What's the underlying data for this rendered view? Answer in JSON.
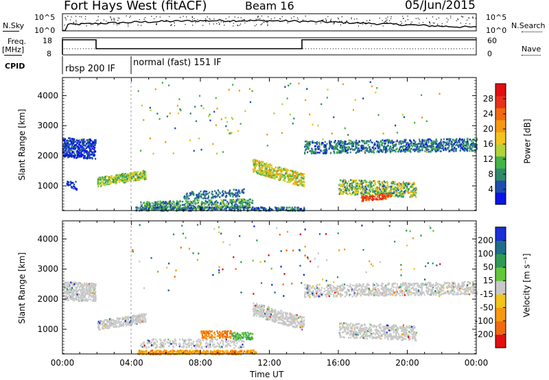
{
  "header": {
    "title": "Fort Hays West (fitACF)",
    "beam": "Beam 16",
    "date": "05/Jun/2015"
  },
  "nsky_panel": {
    "left_label": "N.Sky",
    "right_label": "N.Search",
    "left_ticks": [
      "10^5",
      "10^0"
    ],
    "right_ticks": [
      "10^5",
      "10^0"
    ]
  },
  "freq_panel": {
    "left_label_top": "Freq.",
    "left_label_unit": "[MHz]",
    "right_label": "Nave",
    "left_ticks": [
      "18",
      "8"
    ],
    "right_ticks": [
      "60",
      "0"
    ]
  },
  "cpid": {
    "label": "CPID",
    "segments": [
      "rbsp 200 IF",
      "normal (fast) 151 IF"
    ]
  },
  "chart_data": [
    {
      "type": "heatmap",
      "name": "power",
      "ylabel": "Slant Range [km]",
      "xlim": [
        0,
        24
      ],
      "ylim": [
        180,
        4600
      ],
      "yticks": [
        1000,
        2000,
        3000,
        4000
      ],
      "colorbar": {
        "label": "Power [dB]",
        "ticks": [
          "4",
          "8",
          "12",
          "16",
          "20",
          "24",
          "28"
        ],
        "colors": [
          "#0a14e6",
          "#1e4fb0",
          "#2f8a6a",
          "#44b447",
          "#b6d23a",
          "#f2c41c",
          "#f59a10",
          "#f06a10",
          "#e8301a",
          "#e01010"
        ]
      }
    },
    {
      "type": "heatmap",
      "name": "velocity",
      "ylabel": "Slant Range [km]",
      "xlabel": "Time UT",
      "xlim": [
        0,
        24
      ],
      "ylim": [
        180,
        4600
      ],
      "xticks": [
        "00:00",
        "04:00",
        "08:00",
        "12:00",
        "16:00",
        "20:00",
        "00:00"
      ],
      "yticks": [
        1000,
        2000,
        3000,
        4000
      ],
      "colorbar": {
        "label": "Velocity [m s⁻¹]",
        "ticks": [
          "200",
          "100",
          "50",
          "15",
          "-15",
          "-50",
          "-100",
          "-200"
        ],
        "colors": [
          "#1a2fd6",
          "#1e6e8a",
          "#2f9a55",
          "#62c83a",
          "#c8c8c8",
          "#f2c41c",
          "#f59a10",
          "#f06a10",
          "#e01010"
        ]
      }
    }
  ]
}
